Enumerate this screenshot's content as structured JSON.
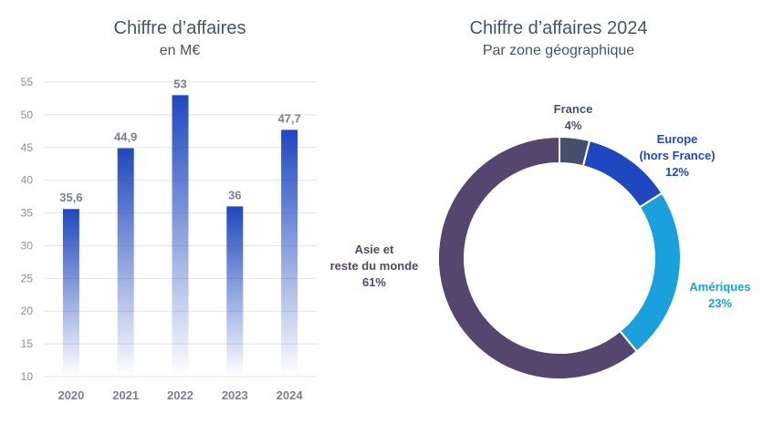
{
  "chart_data": [
    {
      "type": "bar",
      "title": "Chiffre d’affaires",
      "subtitle": "en M€",
      "categories": [
        "2020",
        "2021",
        "2022",
        "2023",
        "2024"
      ],
      "values": [
        35.6,
        44.9,
        53,
        36,
        47.7
      ],
      "data_labels": [
        "35,6",
        "44,9",
        "53",
        "36",
        "47,7"
      ],
      "ylim": [
        10,
        55
      ],
      "yticks": [
        10,
        15,
        20,
        25,
        30,
        35,
        40,
        45,
        50,
        55
      ],
      "grid": true,
      "bar_color": "#1f48c0"
    },
    {
      "type": "pie",
      "title": "Chiffre d’affaires 2024",
      "subtitle": "Par zone géographique",
      "slices": [
        {
          "label_lines": [
            "France"
          ],
          "percent": 4,
          "percent_label": "4%",
          "color": "#46506e"
        },
        {
          "label_lines": [
            "Europe",
            "(hors France)"
          ],
          "percent": 12,
          "percent_label": "12%",
          "color": "#1f48c0"
        },
        {
          "label_lines": [
            "Amériques"
          ],
          "percent": 23,
          "percent_label": "23%",
          "color": "#1aa0dc"
        },
        {
          "label_lines": [
            "Asie et",
            "reste du monde"
          ],
          "percent": 61,
          "percent_label": "61%",
          "color": "#54466e"
        }
      ]
    }
  ]
}
